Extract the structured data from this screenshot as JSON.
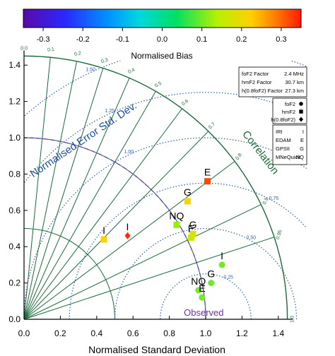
{
  "chart_data": {
    "type": "taylor_diagram",
    "colorbar": {
      "label": "Normalised Bias",
      "ticks": [
        -0.3,
        -0.2,
        -0.1,
        0.0,
        0.1,
        0.2,
        0.3
      ],
      "tick_labels": [
        "-0.3",
        "-0.2",
        "-0.1",
        "0.0",
        "0.1",
        "0.2",
        "0.3"
      ],
      "range": [
        -0.35,
        0.35
      ]
    },
    "xlabel": "Normalised Standard Deviation",
    "axis_ticks": [
      0.0,
      0.2,
      0.4,
      0.6,
      0.8,
      1.0,
      1.2,
      1.4
    ],
    "axis_tick_labels": [
      "0.0",
      "0.2",
      "0.4",
      "0.6",
      "0.8",
      "1.0",
      "1.2",
      "1.4"
    ],
    "x_range": [
      0,
      1.48
    ],
    "y_range": [
      0,
      1.48
    ],
    "correlation_label": "Correlation",
    "correlation_ticks": [
      0.0,
      0.1,
      0.2,
      0.3,
      0.4,
      0.5,
      0.6,
      0.7,
      0.8,
      0.9,
      0.95,
      1.0
    ],
    "correlation_tick_labels": [
      "0.0",
      "0.1",
      "0.2",
      "0.3",
      "0.4",
      "0.5",
      "0.6",
      "0.7",
      "0.8",
      "0.9",
      "0.95",
      "1.0"
    ],
    "error_label": "Normalised Error Std. Dev.",
    "error_contours": [
      0.25,
      0.5,
      0.75,
      1.0,
      1.25,
      1.5
    ],
    "error_contour_labels": [
      "0.25",
      "0.50",
      "0.75",
      "1.00",
      "1.25",
      "1.50"
    ],
    "observed_label": "Observed",
    "observed": {
      "std": 1.0
    },
    "colors": {
      "grid": "#1a6b3a",
      "contour": "#2a5fb0",
      "observed": "#6a2fb0"
    },
    "factors_box": [
      {
        "name": "foF2 Factor",
        "value": "2.4 MHz"
      },
      {
        "name": "hmF2 Factor",
        "value": "30.7 km"
      },
      {
        "name": "h(0.8foF2) Factor",
        "value": "27.3 km"
      }
    ],
    "param_legend": [
      {
        "label": "foF2",
        "marker": "circle"
      },
      {
        "label": "hmF2",
        "marker": "square"
      },
      {
        "label": "h(0.8foF2)",
        "marker": "diamond"
      }
    ],
    "model_legend": [
      {
        "name": "IRI",
        "abbr": "I"
      },
      {
        "name": "EDAM",
        "abbr": "E"
      },
      {
        "name": "GPSII",
        "abbr": "G"
      },
      {
        "name": "MNeQuick",
        "abbr": "NQ"
      }
    ],
    "points": [
      {
        "label": "I",
        "param": "foF2",
        "x": 1.09,
        "y": 0.3,
        "bias": 0.1
      },
      {
        "label": "G",
        "param": "foF2",
        "x": 1.03,
        "y": 0.2,
        "bias": 0.1
      },
      {
        "label": "NQ",
        "param": "foF2",
        "x": 0.96,
        "y": 0.16,
        "bias": 0.1
      },
      {
        "label": "E",
        "param": "foF2",
        "x": 0.98,
        "y": 0.12,
        "bias": 0.1
      },
      {
        "label": "E",
        "param": "hmF2",
        "x": 1.01,
        "y": 0.76,
        "bias": 0.32
      },
      {
        "label": "G",
        "param": "hmF2",
        "x": 0.9,
        "y": 0.65,
        "bias": 0.22
      },
      {
        "label": "NQ",
        "param": "hmF2",
        "x": 0.84,
        "y": 0.52,
        "bias": 0.12
      },
      {
        "label": "I",
        "param": "hmF2",
        "x": 0.44,
        "y": 0.44,
        "bias": 0.22
      },
      {
        "label": "E",
        "param": "hmF2",
        "x": 0.92,
        "y": 0.45,
        "bias": 0.16
      },
      {
        "label": "G",
        "param": "hmF2",
        "x": 0.93,
        "y": 0.47,
        "bias": 0.18
      },
      {
        "label": "I",
        "param": "h(0.8foF2)",
        "x": 0.57,
        "y": 0.46,
        "bias": 0.34
      }
    ]
  }
}
